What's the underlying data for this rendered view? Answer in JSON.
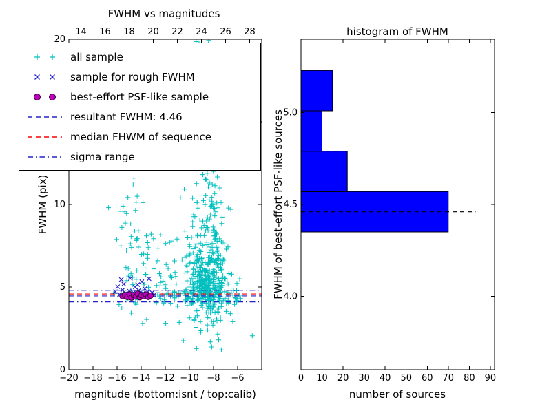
{
  "figure": {
    "background": "#ffffff"
  },
  "legend": {
    "entries": [
      {
        "label": "all sample",
        "marker": "plus",
        "color": "#00bfbf"
      },
      {
        "label": "sample for rough FWHM",
        "marker": "cross",
        "color": "#2222cc"
      },
      {
        "label": "best-effort PSF-like sample",
        "marker": "circle",
        "color": "#bf00bf",
        "edge": "#2a002a"
      },
      {
        "label": "resultant FWHM: 4.46",
        "marker": "dashed",
        "color": "#2222cc"
      },
      {
        "label": "median FHWM of sequence",
        "marker": "dashed",
        "color": "#ff0000"
      },
      {
        "label": "sigma range",
        "marker": "dashdot",
        "color": "#2222cc"
      }
    ]
  },
  "chart_data": [
    {
      "type": "scatter",
      "title": "FWHM vs magnitudes",
      "xlabel": "magnitude (bottom:isnt / top:calib)",
      "ylabel": "FWHM (pix)",
      "xlim": [
        -20,
        -4
      ],
      "ylim": [
        0,
        20
      ],
      "top_xlim": [
        13,
        29
      ],
      "xticks_bottom": [
        -20,
        -18,
        -16,
        -14,
        -12,
        -10,
        -8,
        -6
      ],
      "xticks_top": [
        14,
        16,
        18,
        20,
        22,
        24,
        26,
        28
      ],
      "yticks": [
        0,
        5,
        10,
        15,
        20
      ],
      "grid": false,
      "hlines": [
        {
          "name": "sigma range upper",
          "y": 4.8,
          "color": "#2222cc",
          "style": "dashdot"
        },
        {
          "name": "median FHWM of sequence",
          "y": 4.58,
          "color": "#ff0000",
          "style": "dashed"
        },
        {
          "name": "resultant FWHM",
          "y": 4.46,
          "color": "#2222cc",
          "style": "dashed"
        },
        {
          "name": "sigma range lower",
          "y": 4.1,
          "color": "#2222cc",
          "style": "dashdot"
        }
      ],
      "series": [
        {
          "name": "all sample",
          "marker": "plus",
          "color": "#00bfbf",
          "clusters": [
            {
              "cx": -8.4,
              "cy": 5.3,
              "sx": 0.85,
              "sy": 1.15,
              "n": 330
            },
            {
              "cx": -8.5,
              "cy": 8.0,
              "sx": 0.75,
              "sy": 1.6,
              "n": 90
            },
            {
              "cx": -8.55,
              "cy": 12.5,
              "sx": 0.6,
              "sy": 2.0,
              "n": 60
            },
            {
              "cx": -8.7,
              "cy": 17.5,
              "sx": 0.55,
              "sy": 2.2,
              "n": 45
            },
            {
              "cx": -14.3,
              "cy": 6.4,
              "sx": 0.95,
              "sy": 1.7,
              "n": 55
            },
            {
              "cx": -11.6,
              "cy": 5.7,
              "sx": 1.05,
              "sy": 1.15,
              "n": 40
            },
            {
              "cx": -9.3,
              "cy": 4.45,
              "sx": 1.9,
              "sy": 0.3,
              "n": 85
            },
            {
              "cx": -14.9,
              "cy": 9.3,
              "sx": 0.55,
              "sy": 1.2,
              "n": 12
            },
            {
              "cx": -8.5,
              "cy": 2.6,
              "sx": 1.1,
              "sy": 0.6,
              "n": 15
            }
          ],
          "points": [
            [
              -15.9,
              12.85
            ],
            [
              -15.5,
              9.9
            ],
            [
              -15.35,
              9.55
            ],
            [
              -10.75,
              10.4
            ],
            [
              -10.5,
              1.75
            ],
            [
              -7.35,
              1.2
            ],
            [
              -6.05,
              4.2
            ],
            [
              -5.85,
              4.5
            ],
            [
              -6.25,
              3.95
            ],
            [
              -5.75,
              4.3
            ],
            [
              -6.4,
              2.9
            ],
            [
              -16.3,
              4.6
            ]
          ]
        },
        {
          "name": "sample for rough FWHM",
          "marker": "cross",
          "color": "#2222cc",
          "points": [
            [
              -16.15,
              4.72
            ],
            [
              -15.95,
              5.02
            ],
            [
              -15.8,
              4.55
            ],
            [
              -15.65,
              5.45
            ],
            [
              -15.55,
              4.82
            ],
            [
              -15.45,
              5.18
            ],
            [
              -15.3,
              4.62
            ],
            [
              -15.15,
              4.45
            ],
            [
              -15.0,
              4.76
            ],
            [
              -14.9,
              5.52
            ],
            [
              -14.8,
              4.52
            ],
            [
              -14.65,
              4.66
            ],
            [
              -14.5,
              5.0
            ],
            [
              -14.4,
              4.56
            ],
            [
              -14.3,
              5.14
            ],
            [
              -14.2,
              4.8
            ],
            [
              -14.05,
              4.5
            ],
            [
              -13.95,
              5.32
            ],
            [
              -13.85,
              4.62
            ],
            [
              -13.7,
              4.9
            ],
            [
              -13.6,
              4.52
            ],
            [
              -13.45,
              4.72
            ],
            [
              -13.35,
              5.5
            ],
            [
              -13.25,
              4.56
            ],
            [
              -13.1,
              4.66
            ],
            [
              -12.95,
              4.5
            ]
          ]
        },
        {
          "name": "best-effort PSF-like sample",
          "marker": "circle",
          "color": "#bf00bf",
          "edge": "#2a002a",
          "points": [
            [
              -15.55,
              4.44
            ],
            [
              -15.35,
              4.52
            ],
            [
              -15.15,
              4.4
            ],
            [
              -14.95,
              4.56
            ],
            [
              -14.8,
              4.36
            ],
            [
              -14.62,
              4.5
            ],
            [
              -14.45,
              4.42
            ],
            [
              -14.3,
              4.6
            ],
            [
              -14.12,
              4.38
            ],
            [
              -13.98,
              4.5
            ],
            [
              -13.8,
              4.44
            ],
            [
              -13.62,
              4.55
            ],
            [
              -13.42,
              4.4
            ],
            [
              -13.22,
              4.48
            ]
          ]
        }
      ]
    },
    {
      "type": "histogram-horizontal",
      "title": "histogram of FWHM",
      "xlabel": "number of sources",
      "ylabel": "FWHM of best-effort PSF-like sources",
      "xlim": [
        0,
        92
      ],
      "ylim": [
        3.6,
        5.4
      ],
      "xticks": [
        0,
        10,
        20,
        30,
        40,
        50,
        60,
        70,
        80,
        90
      ],
      "yticks": [
        4.0,
        4.5,
        5.0
      ],
      "ytick_labels": [
        "4.0",
        "4.5",
        "5.0"
      ],
      "bar_color": "#0000ff",
      "bar_edge": "#000000",
      "bin_edges": [
        4.35,
        4.57,
        4.79,
        5.01,
        5.23
      ],
      "counts": [
        70,
        22,
        10,
        15
      ],
      "dashed_line": {
        "value": 4.46,
        "from": 0,
        "to": 83,
        "color": "#000000"
      }
    }
  ]
}
